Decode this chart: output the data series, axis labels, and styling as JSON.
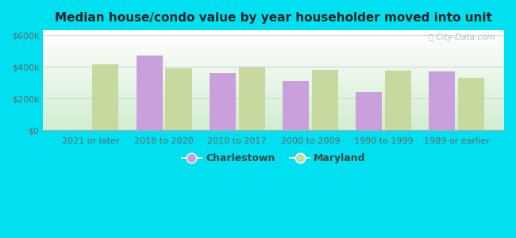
{
  "title": "Median house/condo value by year householder moved into unit",
  "categories": [
    "2021 or later",
    "2018 to 2020",
    "2010 to 2017",
    "2000 to 2009",
    "1990 to 1999",
    "1989 or earlier"
  ],
  "charlestown": [
    null,
    470000,
    360000,
    310000,
    240000,
    370000
  ],
  "maryland": [
    415000,
    390000,
    395000,
    380000,
    375000,
    330000
  ],
  "charlestown_color": "#c9a0dc",
  "maryland_color": "#c8d9a0",
  "background_outer": "#00e0f0",
  "yticks": [
    0,
    200000,
    400000,
    600000
  ],
  "ytick_labels": [
    "$0",
    "$200k",
    "$400k",
    "$600k"
  ],
  "ylim": [
    0,
    630000
  ],
  "bar_width": 0.36,
  "legend_charlestown": "Charlestown",
  "legend_maryland": "Maryland",
  "watermark": "City-Data.com"
}
